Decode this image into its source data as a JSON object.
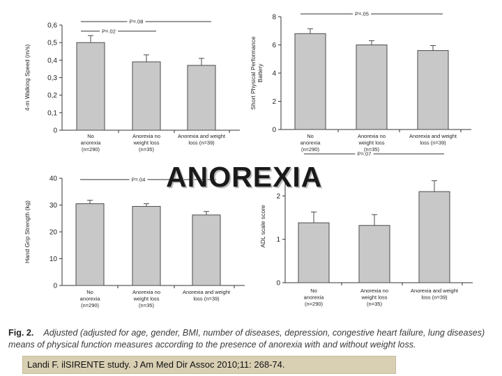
{
  "overlay_title": "ANOREXIA",
  "caption": {
    "label": "Fig. 2.",
    "text": "Adjusted (adjusted for age, gender, BMI, number of diseases, depression, congestive heart failure, lung diseases) means of physical function measures according to the presence of anorexia with and without weight loss."
  },
  "citation": "Landi F. ilSIRENTE study. J Am Med Dir Assoc 2010;11: 268-74.",
  "colors": {
    "bar": "#c8c8c8",
    "bar_edge": "#4a4a4a",
    "axis": "#333333",
    "citation_bg": "#d9cfb3"
  },
  "chart_data": [
    {
      "type": "bar",
      "ylabel": "4-m Walking Speed (m/s)",
      "ylim": [
        0,
        0.6
      ],
      "yticks": [
        "0",
        "0,1",
        "0,2",
        "0,3",
        "0,4",
        "0,5",
        "0,6"
      ],
      "categories": [
        [
          "No",
          "anorexia",
          "(n=290)"
        ],
        [
          "Anorexia no",
          "weight loss",
          "(n=35)"
        ],
        [
          "Anorexia and weight",
          "loss (n=39)"
        ]
      ],
      "values": [
        0.5,
        0.39,
        0.37
      ],
      "errors": [
        0.04,
        0.04,
        0.04
      ],
      "pvalues": [
        {
          "label": "P=.08",
          "from": 0,
          "to": 2,
          "level": 0.62
        },
        {
          "label": "P=.02",
          "from": 0,
          "to": 1,
          "level": 0.565
        }
      ]
    },
    {
      "type": "bar",
      "ylabel": "Short Physical Performance Battery",
      "ylim": [
        0,
        8
      ],
      "yticks": [
        "0",
        "2",
        "4",
        "6",
        "8"
      ],
      "categories": [
        [
          "No",
          "anorexia",
          "(n=290)"
        ],
        [
          "Anorexia no",
          "weight loss",
          "(n=35)"
        ],
        [
          "Anorexia and weight",
          "loss (n=39)"
        ]
      ],
      "values": [
        6.8,
        6.0,
        5.6
      ],
      "errors": [
        0.35,
        0.3,
        0.35
      ],
      "pvalues": [
        {
          "label": "P=.05",
          "from": 0,
          "to": 2,
          "level": 8.2
        }
      ]
    },
    {
      "type": "bar",
      "ylabel": "Hand Grip Strength (kg)",
      "ylim": [
        0,
        40
      ],
      "yticks": [
        "0",
        "10",
        "20",
        "30",
        "40"
      ],
      "categories": [
        [
          "No",
          "anorexia",
          "(n=290)"
        ],
        [
          "Anorexia no",
          "weight loss",
          "(n=35)"
        ],
        [
          "Anorexia and weight",
          "loss (n=39)"
        ]
      ],
      "values": [
        30.5,
        29.5,
        26.3
      ],
      "errors": [
        1.3,
        1.0,
        1.3
      ],
      "pvalues": [
        {
          "label": "P=.04",
          "from": 0,
          "to": 2,
          "level": 39.5
        }
      ]
    },
    {
      "type": "bar",
      "ylabel": "ADL scale score",
      "ylim": [
        0,
        2.6
      ],
      "yticks": [
        "0",
        "1",
        "2"
      ],
      "categories": [
        [
          "No",
          "anorexia",
          "(n=290)"
        ],
        [
          "Anorexia no",
          "weight loss",
          "(n=35)"
        ],
        [
          "Anorexia and weight",
          "loss (n=39)"
        ]
      ],
      "values": [
        1.38,
        1.32,
        2.1
      ],
      "errors": [
        0.25,
        0.25,
        0.25
      ],
      "pvalues": [
        {
          "label": "P=.07",
          "from": 0,
          "to": 2,
          "level": 2.97
        }
      ]
    }
  ]
}
